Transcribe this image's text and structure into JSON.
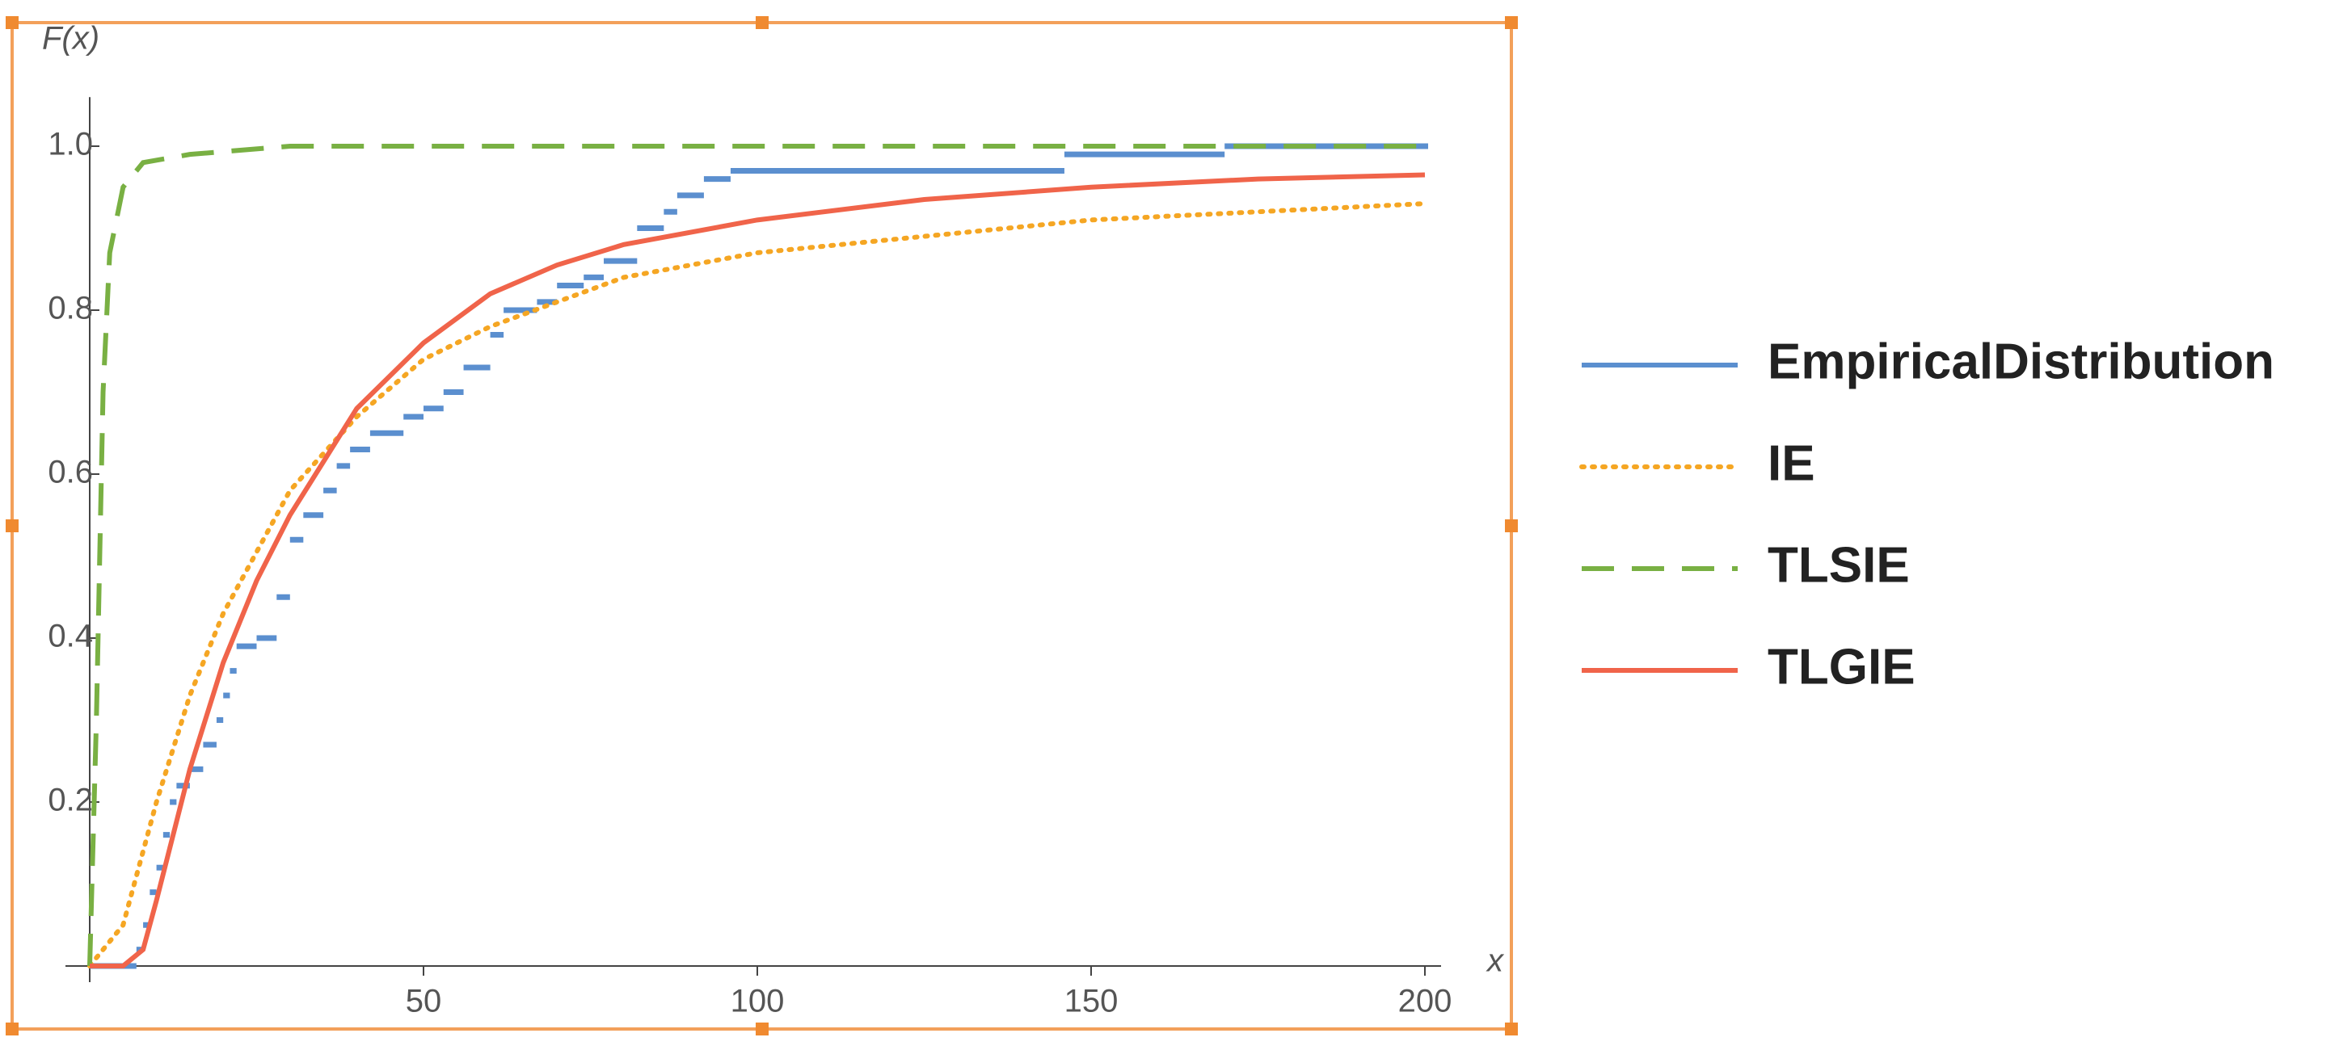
{
  "chart_data": {
    "type": "line",
    "xlabel": "x",
    "ylabel": "F(x)",
    "xlim": [
      0,
      200
    ],
    "ylim": [
      0,
      1.05
    ],
    "xticks": [
      50,
      100,
      150,
      200
    ],
    "yticks": [
      0.2,
      0.4,
      0.6,
      0.8,
      {
        "value": 1,
        "label": "1.0"
      }
    ],
    "legend": "right",
    "series": [
      {
        "name": "EmpiricalDistribution",
        "color": "#5b8fcf",
        "style": "step",
        "x": [
          0,
          7,
          8,
          9,
          10,
          11,
          12,
          13,
          15,
          17,
          19,
          20,
          21,
          22,
          25,
          28,
          30,
          32,
          35,
          37,
          39,
          42,
          47,
          50,
          53,
          56,
          60,
          62,
          67,
          70,
          74,
          77,
          82,
          86,
          88,
          92,
          96,
          146,
          170,
          200
        ],
        "values": [
          0,
          0.02,
          0.05,
          0.09,
          0.12,
          0.16,
          0.2,
          0.22,
          0.24,
          0.27,
          0.3,
          0.33,
          0.36,
          0.39,
          0.4,
          0.45,
          0.52,
          0.55,
          0.58,
          0.61,
          0.63,
          0.65,
          0.67,
          0.68,
          0.7,
          0.73,
          0.77,
          0.8,
          0.81,
          0.83,
          0.84,
          0.86,
          0.9,
          0.92,
          0.94,
          0.96,
          0.97,
          0.99,
          1.0,
          1.0
        ]
      },
      {
        "name": "IE",
        "color": "#f5a623",
        "style": "dotted",
        "x": [
          0,
          5,
          10,
          15,
          20,
          30,
          40,
          50,
          60,
          70,
          80,
          100,
          125,
          150,
          175,
          200
        ],
        "values": [
          0,
          0.05,
          0.2,
          0.33,
          0.43,
          0.58,
          0.67,
          0.74,
          0.78,
          0.81,
          0.84,
          0.87,
          0.89,
          0.91,
          0.92,
          0.93
        ]
      },
      {
        "name": "TLSIE",
        "color": "#79b043",
        "style": "dashed",
        "x": [
          0,
          1,
          2,
          3,
          5,
          8,
          15,
          30,
          200
        ],
        "values": [
          0,
          0.3,
          0.7,
          0.87,
          0.95,
          0.98,
          0.99,
          1.0,
          1.0
        ]
      },
      {
        "name": "TLGIE",
        "color": "#f0644a",
        "style": "solid",
        "x": [
          0,
          5,
          8,
          10,
          15,
          20,
          25,
          30,
          40,
          50,
          60,
          70,
          80,
          100,
          125,
          150,
          175,
          200
        ],
        "values": [
          0,
          0,
          0.02,
          0.08,
          0.24,
          0.37,
          0.47,
          0.55,
          0.68,
          0.76,
          0.82,
          0.855,
          0.88,
          0.91,
          0.935,
          0.95,
          0.96,
          0.965
        ]
      }
    ]
  }
}
